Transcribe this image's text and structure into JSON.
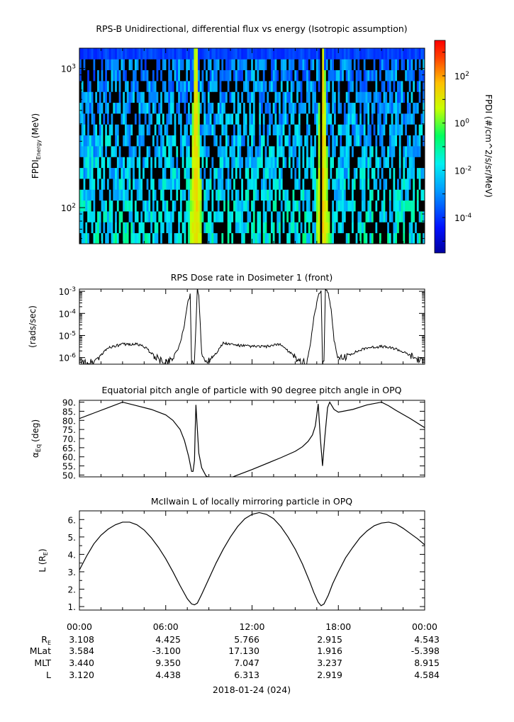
{
  "chart_data": [
    {
      "type": "heatmap",
      "title": "RPS-B  Unidirectional, differential flux vs energy (Isotropic assumption)",
      "ylabel": "FPDI",
      "ylabel_sub": "Energy",
      "ylabel_unit": "(MeV)",
      "yscale": "log",
      "ylim": [
        55,
        1400
      ],
      "y_ticks": [
        {
          "value": 100,
          "base": "10",
          "exp": "2"
        },
        {
          "value": 1000,
          "base": "10",
          "exp": "3"
        }
      ],
      "energy_channel_count": 18,
      "colorbar": {
        "label": "FPDI (#/cm^2/s/sr/MeV)",
        "scale": "log",
        "range_exp": [
          -5.5,
          3.5
        ],
        "ticks": [
          {
            "value_exp": 2,
            "base": "10",
            "exp": "2"
          },
          {
            "value_exp": 0,
            "base": "10",
            "exp": "0"
          },
          {
            "value_exp": -2,
            "base": "10",
            "exp": "-2"
          },
          {
            "value_exp": -4,
            "base": "10",
            "exp": "-4"
          }
        ]
      },
      "features": [
        {
          "kind": "wedge-band",
          "center_hour": 8.1,
          "half_width_low_hr": 0.45,
          "half_width_high_hr": 0.1,
          "gap_hour": 8.1
        },
        {
          "kind": "wedge-band",
          "center_hour": 16.9,
          "half_width_low_hr": 0.5,
          "half_width_high_hr": 0.12,
          "gap_hour": 16.85
        }
      ]
    },
    {
      "type": "line",
      "title": "RPS  Dose rate in Dosimeter 1 (front)",
      "ylabel": "(rads/sec)",
      "yscale": "log",
      "ylim_exp": [
        -6.3,
        -2.9
      ],
      "y_ticks": [
        {
          "value_exp": -3,
          "base": "10",
          "exp": "-3"
        },
        {
          "value_exp": -4,
          "base": "10",
          "exp": "-4"
        },
        {
          "value_exp": -5,
          "base": "10",
          "exp": "-5"
        },
        {
          "value_exp": -6,
          "base": "10",
          "exp": "-6"
        }
      ],
      "series": [
        {
          "x_hours": [
            0.0,
            1.0,
            1.5,
            2.0,
            3.0,
            4.0,
            4.5,
            5.0,
            5.5,
            6.0,
            6.5,
            7.0,
            7.3,
            7.5,
            7.7,
            7.8,
            7.9,
            8.0,
            8.2,
            8.3,
            8.4,
            8.5,
            8.7,
            9.0,
            9.5,
            10.0,
            11.0,
            12.0,
            13.0,
            14.0,
            15.0,
            15.5,
            15.8,
            16.0,
            16.3,
            16.6,
            16.8,
            16.9,
            17.0,
            17.1,
            17.3,
            17.5,
            17.7,
            18.0,
            19.0,
            20.0,
            21.0,
            22.0,
            23.0,
            24.0
          ],
          "y_log10": [
            -6.3,
            -6.2,
            -5.9,
            -5.55,
            -5.4,
            -5.4,
            -5.5,
            -5.8,
            -6.1,
            -6.25,
            -6.0,
            -5.4,
            -4.5,
            -3.6,
            -3.15,
            -6.2,
            -6.2,
            -6.2,
            -2.85,
            -3.2,
            -4.5,
            -5.8,
            -6.2,
            -6.1,
            -5.8,
            -5.35,
            -5.45,
            -5.5,
            -5.5,
            -5.4,
            -6.0,
            -6.2,
            -6.25,
            -5.6,
            -4.2,
            -3.2,
            -2.95,
            -6.2,
            -6.2,
            -2.85,
            -3.1,
            -3.8,
            -5.2,
            -6.1,
            -5.8,
            -5.55,
            -5.5,
            -5.6,
            -5.9,
            -6.25
          ]
        }
      ]
    },
    {
      "type": "line",
      "title": "Equatorial pitch angle of particle with 90 degree pitch angle in OPQ",
      "ylabel": "α",
      "ylabel_sub": "Eq",
      "ylabel_unit": "(deg)",
      "ylim": [
        49,
        91
      ],
      "y_ticks": [
        "90.",
        "85.",
        "80.",
        "75.",
        "70.",
        "65.",
        "60.",
        "55.",
        "50."
      ],
      "y_tick_values": [
        90,
        85,
        80,
        75,
        70,
        65,
        60,
        55,
        50
      ],
      "series": [
        {
          "x_hours": [
            0.0,
            1.0,
            2.0,
            3.0,
            4.0,
            5.0,
            6.0,
            6.5,
            7.0,
            7.3,
            7.6,
            7.8,
            7.9,
            8.0,
            8.05,
            8.1,
            8.2,
            8.3,
            8.5,
            8.8,
            9.2,
            9.6,
            10.0,
            12.0,
            14.0,
            15.0,
            15.5,
            15.9,
            16.2,
            16.4,
            16.5,
            16.6,
            16.75,
            16.9,
            17.05,
            17.25,
            17.4,
            17.7,
            18.0,
            19.0,
            20.0,
            21.0,
            21.5,
            22.0,
            23.0,
            24.0
          ],
          "y": [
            81.0,
            84.0,
            87.0,
            90.0,
            88.0,
            86.0,
            83.0,
            80.0,
            75.0,
            69.0,
            60.0,
            52.0,
            52.0,
            58.0,
            75.0,
            88.5,
            75.0,
            62.0,
            54.0,
            49.5,
            48.0,
            47.0,
            47.0,
            53.0,
            59.5,
            63.0,
            65.5,
            68.5,
            72.0,
            77.0,
            83.0,
            89.0,
            70.0,
            55.0,
            70.0,
            87.0,
            90.0,
            86.0,
            84.5,
            86.0,
            88.5,
            90.0,
            88.0,
            85.5,
            81.0,
            76.0
          ]
        }
      ]
    },
    {
      "type": "line",
      "title": "McIlwain L of locally mirroring particle in OPQ",
      "ylabel": "L (R",
      "ylabel_sub": "E",
      "ylabel_unit": ")",
      "ylim": [
        0.8,
        6.5
      ],
      "y_ticks": [
        "6.",
        "5.",
        "4.",
        "3.",
        "2.",
        "1."
      ],
      "y_tick_values": [
        6,
        5,
        4,
        3,
        2,
        1
      ],
      "series": [
        {
          "x_hours": [
            0.0,
            0.5,
            1.0,
            1.5,
            2.0,
            2.5,
            3.0,
            3.5,
            4.0,
            4.5,
            5.0,
            5.5,
            6.0,
            6.5,
            7.0,
            7.5,
            7.8,
            8.0,
            8.2,
            8.5,
            9.0,
            9.5,
            10.0,
            10.5,
            11.0,
            11.5,
            12.0,
            12.5,
            13.0,
            13.5,
            14.0,
            14.5,
            15.0,
            15.5,
            16.0,
            16.3,
            16.6,
            16.8,
            17.0,
            17.3,
            17.6,
            18.0,
            18.5,
            19.0,
            19.5,
            20.0,
            20.5,
            21.0,
            21.5,
            22.0,
            22.5,
            23.0,
            23.5,
            24.0
          ],
          "y": [
            3.1,
            3.9,
            4.6,
            5.1,
            5.45,
            5.7,
            5.85,
            5.85,
            5.7,
            5.4,
            4.95,
            4.4,
            3.75,
            3.0,
            2.2,
            1.45,
            1.15,
            1.1,
            1.2,
            1.7,
            2.6,
            3.5,
            4.3,
            5.0,
            5.6,
            6.05,
            6.3,
            6.4,
            6.3,
            6.05,
            5.6,
            5.0,
            4.3,
            3.45,
            2.45,
            1.8,
            1.25,
            1.05,
            1.15,
            1.65,
            2.3,
            3.0,
            3.8,
            4.4,
            4.95,
            5.35,
            5.65,
            5.8,
            5.85,
            5.75,
            5.5,
            5.2,
            4.9,
            4.55
          ]
        }
      ]
    }
  ],
  "x_axis": {
    "range_hours": [
      0,
      24
    ],
    "ticks": [
      "00:00",
      "06:00",
      "12:00",
      "18:00",
      "00:00"
    ],
    "minor_step_hours": 1.5,
    "date": "2018-01-24 (024)"
  },
  "ephemeris": {
    "rows": [
      {
        "label": "R",
        "label_sub": "E",
        "values": [
          "3.108",
          "4.425",
          "5.766",
          "2.915",
          "4.543"
        ]
      },
      {
        "label": "MLat",
        "label_sub": "",
        "values": [
          "3.584",
          "-3.100",
          "17.130",
          "1.916",
          "-5.398"
        ]
      },
      {
        "label": "MLT",
        "label_sub": "",
        "values": [
          "3.440",
          "9.350",
          "7.047",
          "3.237",
          "8.915"
        ]
      },
      {
        "label": "L",
        "label_sub": "",
        "values": [
          "3.120",
          "4.438",
          "6.313",
          "2.919",
          "4.584"
        ]
      }
    ]
  }
}
